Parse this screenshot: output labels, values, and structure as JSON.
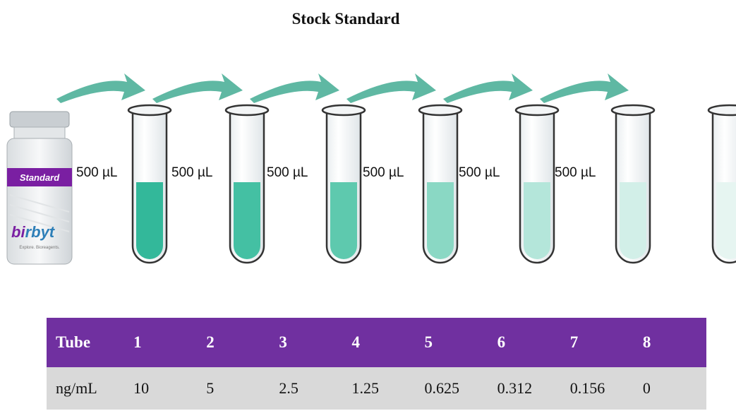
{
  "title": "Stock Standard",
  "vial": {
    "label": "Standard",
    "brand_prefix": "bi",
    "brand_suffix": "rbyt",
    "tagline": "Explore. Bioreagents."
  },
  "transfer_labels": [
    "500 µL",
    "500 µL",
    "500 µL",
    "500 µL",
    "500 µL",
    "500 µL"
  ],
  "tubes": [
    {
      "fill_color": "#33b89a"
    },
    {
      "fill_color": "#44c0a3"
    },
    {
      "fill_color": "#5ec9ae"
    },
    {
      "fill_color": "#8ad8c4"
    },
    {
      "fill_color": "#b4e6da"
    },
    {
      "fill_color": "#d2efe8"
    },
    {
      "fill_color": "#e6f5f1"
    }
  ],
  "arrow_color": "#5fb8a3",
  "table": {
    "header": [
      "Tube",
      "1",
      "2",
      "3",
      "4",
      "5",
      "6",
      "7",
      "8"
    ],
    "values": [
      "ng/mL",
      "10",
      "5",
      "2.5",
      "1.25",
      "0.625",
      "0.312",
      "0.156",
      "0"
    ],
    "header_color": "#7030a0",
    "row_color": "#d9d9d9"
  }
}
